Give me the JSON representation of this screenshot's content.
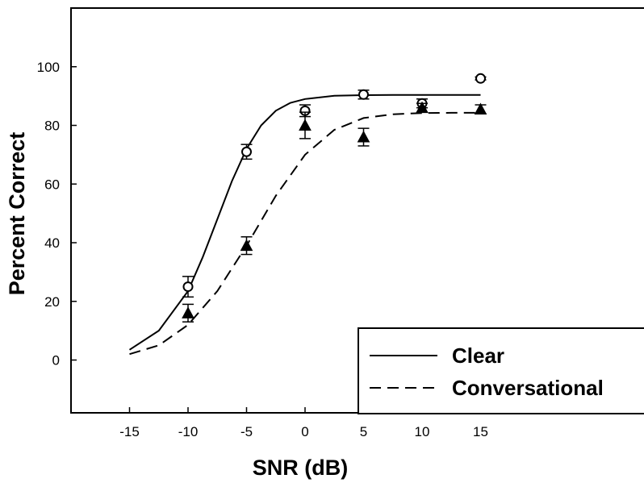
{
  "chart_data": {
    "type": "scatter",
    "title": "",
    "xlabel": "SNR (dB)",
    "ylabel": "Percent Correct",
    "xlim": [
      -20,
      30
    ],
    "ylim": [
      -18,
      120
    ],
    "xticks": [
      -15,
      -10,
      -5,
      0,
      5,
      10,
      15
    ],
    "yticks": [
      0,
      20,
      40,
      60,
      80,
      100
    ],
    "grid": false,
    "legend_position": "bottom-right",
    "series": [
      {
        "name": "Clear",
        "marker": "open-circle",
        "line_style": "solid",
        "x": [
          -10,
          -5,
          0,
          5,
          10,
          15
        ],
        "y": [
          25,
          71,
          85,
          90.5,
          87.5,
          96
        ],
        "err": [
          3.5,
          2.5,
          2,
          1.5,
          1.5,
          0.5
        ],
        "fit": {
          "x": [
            -15,
            -12.5,
            -10,
            -8.75,
            -7.5,
            -6.25,
            -5,
            -3.75,
            -2.5,
            -1.25,
            0,
            2.5,
            5,
            7.5,
            10,
            12.5,
            15
          ],
          "y": [
            3.5,
            10,
            23.5,
            35,
            48,
            61,
            72,
            80,
            85,
            87.7,
            89,
            90.1,
            90.3,
            90.4,
            90.4,
            90.4,
            90.4
          ]
        }
      },
      {
        "name": "Conversational",
        "marker": "filled-triangle",
        "line_style": "dashed",
        "x": [
          -10,
          -5,
          0,
          5,
          10,
          15
        ],
        "y": [
          16,
          39,
          80,
          76,
          86,
          85.5
        ],
        "err": [
          3,
          3,
          4.5,
          3,
          1.5,
          1.5
        ],
        "fit": {
          "x": [
            -15,
            -12.5,
            -10,
            -7.5,
            -5,
            -2.5,
            0,
            2.5,
            5,
            7.5,
            10,
            12.5,
            15
          ],
          "y": [
            2,
            5,
            12,
            23.5,
            39,
            56,
            70,
            78.5,
            82.5,
            83.8,
            84.2,
            84.3,
            84.3
          ]
        }
      }
    ]
  }
}
